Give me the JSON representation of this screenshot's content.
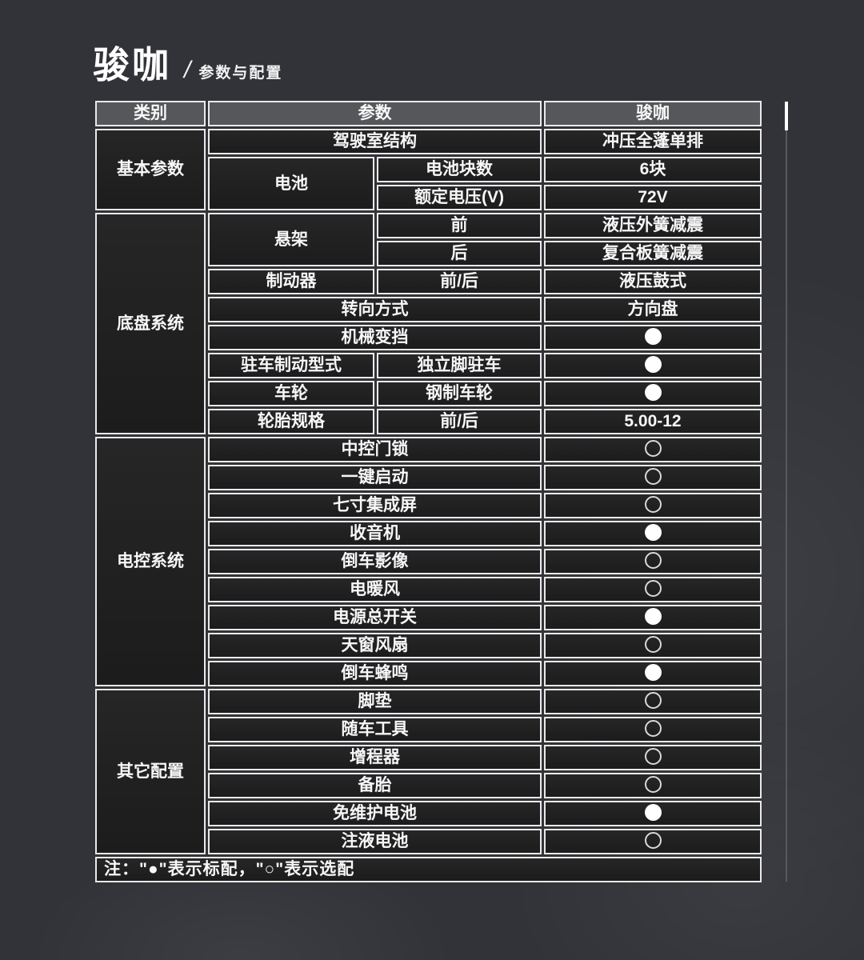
{
  "header": {
    "brand": "骏咖",
    "slash": "/",
    "subtitle": "参数与配置"
  },
  "colors": {
    "page_background": "#323338",
    "cell_background": "#1f1f1f",
    "header_cell_background": "#56575a",
    "border": "#e9e9e9",
    "text": "#f7f7f7",
    "standard_dot": "#ffffff",
    "optional_dot_outline": "#d9d9d9"
  },
  "symbols": {
    "standard": "●",
    "optional": "○"
  },
  "table": {
    "header": {
      "category": "类别",
      "param": "参数",
      "brand": "骏咖"
    },
    "sections": [
      {
        "category": "基本参数",
        "rows": [
          {
            "param": "驾驶室结构",
            "value": "冲压全蓬单排"
          },
          {
            "group": "电池",
            "group_rows": 2,
            "sub": "电池块数",
            "value": "6块"
          },
          {
            "sub": "额定电压(V)",
            "value": "72V"
          }
        ]
      },
      {
        "category": "底盘系统",
        "rows": [
          {
            "group": "悬架",
            "group_rows": 2,
            "sub": "前",
            "value": "液压外簧减震"
          },
          {
            "sub": "后",
            "value": "复合板簧减震"
          },
          {
            "param": "制动器",
            "sub": "前/后",
            "value": "液压鼓式"
          },
          {
            "param": "转向方式",
            "value": "方向盘"
          },
          {
            "param": "机械变挡",
            "dot": "standard"
          },
          {
            "param": "驻车制动型式",
            "sub": "独立脚驻车",
            "dot": "standard"
          },
          {
            "param": "车轮",
            "sub": "钢制车轮",
            "dot": "standard"
          },
          {
            "param": "轮胎规格",
            "sub": "前/后",
            "value": "5.00-12"
          }
        ]
      },
      {
        "category": "电控系统",
        "rows": [
          {
            "param": "中控门锁",
            "dot": "optional"
          },
          {
            "param": "一键启动",
            "dot": "optional"
          },
          {
            "param": "七寸集成屏",
            "dot": "optional"
          },
          {
            "param": "收音机",
            "dot": "standard"
          },
          {
            "param": "倒车影像",
            "dot": "optional"
          },
          {
            "param": "电暖风",
            "dot": "optional"
          },
          {
            "param": "电源总开关",
            "dot": "standard"
          },
          {
            "param": "天窗风扇",
            "dot": "optional"
          },
          {
            "param": "倒车蜂鸣",
            "dot": "standard"
          }
        ]
      },
      {
        "category": "其它配置",
        "rows": [
          {
            "param": "脚垫",
            "dot": "optional"
          },
          {
            "param": "随车工具",
            "dot": "optional"
          },
          {
            "param": "增程器",
            "dot": "optional"
          },
          {
            "param": "备胎",
            "dot": "optional"
          },
          {
            "param": "免维护电池",
            "dot": "standard"
          },
          {
            "param": "注液电池",
            "dot": "optional"
          }
        ]
      }
    ],
    "note": "注：\"●\"表示标配，\"○\"表示选配"
  }
}
